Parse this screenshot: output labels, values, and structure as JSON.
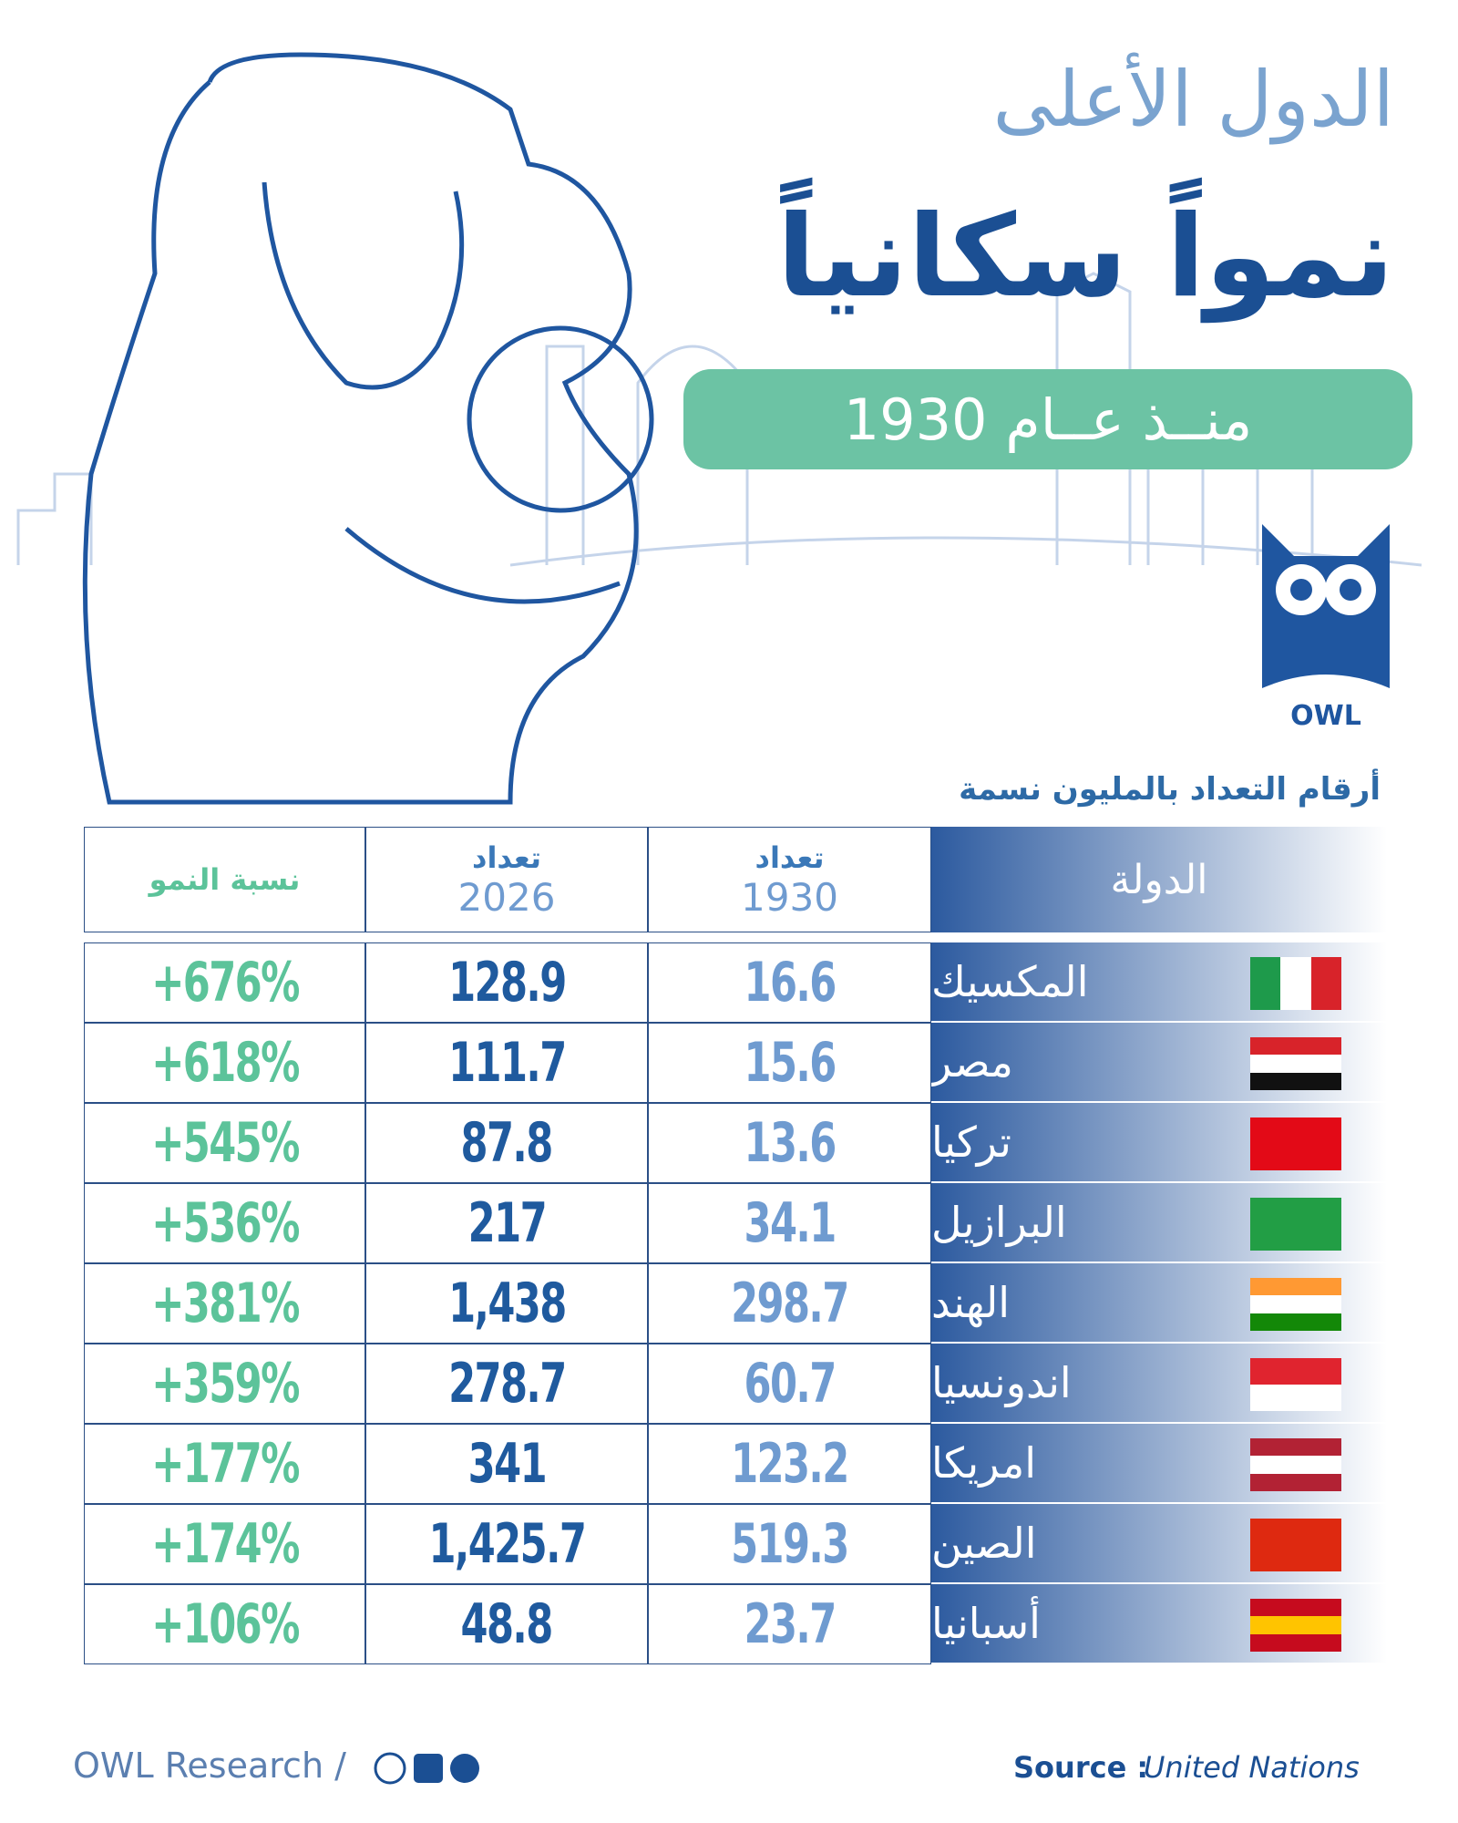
{
  "title": {
    "line1": "الدول الأعلى",
    "line2": "نمواً سكانياً",
    "line3": "منــذ عــام 1930"
  },
  "logo": "OWL",
  "table": {
    "caption": "أرقام التعداد بالمليون نسمة",
    "header": {
      "country": "الدولة",
      "pop1930": {
        "label": "تعداد",
        "year": "1930"
      },
      "pop2026": {
        "label": "تعداد",
        "year": "2026"
      },
      "growth": "نسبة النمو"
    },
    "rows": [
      [
        "المكسيك",
        "16.6",
        "128.9",
        "+676%"
      ],
      [
        "مصر",
        "15.6",
        "111.7",
        "+618%"
      ],
      [
        "تركيا",
        "13.6",
        "87.8",
        "+545%"
      ],
      [
        "البرازيل",
        "34.1",
        "217",
        "+536%"
      ],
      [
        "الهند",
        "298.7",
        "1,438",
        "+381%"
      ],
      [
        "اندونسيا",
        "60.7",
        "278.7",
        "+359%"
      ],
      [
        "امريكا",
        "123.2",
        "341",
        "+177%"
      ],
      [
        "الصين",
        "519.3",
        "1,425.7",
        "+174%"
      ],
      [
        "أسبانيا",
        "23.7",
        "48.8",
        "+106%"
      ]
    ]
  },
  "footer": {
    "brand": "OWL Research /",
    "source_label": "Source :",
    "source": "United Nations"
  }
}
